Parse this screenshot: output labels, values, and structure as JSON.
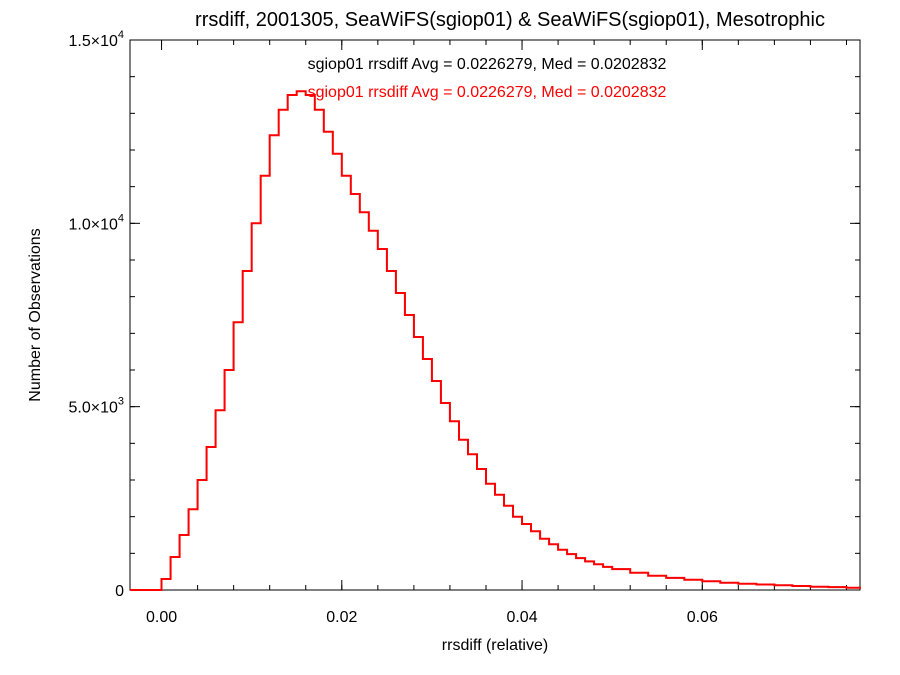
{
  "chart_data": {
    "type": "line",
    "title": "rrsdiff, 2001305, SeaWiFS(sgiop01) & SeaWiFS(sgiop01), Mesotrophic",
    "xlabel": "rrsdiff (relative)",
    "ylabel": "Number of Observations",
    "xlim": [
      -0.0035,
      0.0775
    ],
    "ylim": [
      0,
      15000
    ],
    "x_ticks": [
      {
        "value": 0.0,
        "label": "0.00"
      },
      {
        "value": 0.02,
        "label": "0.02"
      },
      {
        "value": 0.04,
        "label": "0.04"
      },
      {
        "value": 0.06,
        "label": "0.06"
      }
    ],
    "y_ticks": [
      {
        "value": 0,
        "label": "0",
        "exp": ""
      },
      {
        "value": 5000,
        "label": "5.0×10",
        "exp": "3"
      },
      {
        "value": 10000,
        "label": "1.0×10",
        "exp": "4"
      },
      {
        "value": 15000,
        "label": "1.5×10",
        "exp": "4"
      }
    ],
    "x_minor_step": 0.004,
    "y_minor_step": 1000,
    "annotations": [
      {
        "text": "sgiop01 rrsdiff Avg = 0.0226279, Med = 0.0202832",
        "color": "#000000"
      },
      {
        "text": "sgiop01 rrsdiff Avg = 0.0226279, Med = 0.0202832",
        "color": "#ff0000"
      }
    ],
    "grid": false,
    "series": [
      {
        "color": "#000000",
        "x": [
          -0.0035,
          -0.001,
          0.0,
          0.001,
          0.002,
          0.003,
          0.004,
          0.005,
          0.006,
          0.007,
          0.008,
          0.009,
          0.01,
          0.011,
          0.012,
          0.013,
          0.014,
          0.015,
          0.016,
          0.017,
          0.018,
          0.019,
          0.02,
          0.021,
          0.022,
          0.023,
          0.024,
          0.025,
          0.026,
          0.027,
          0.028,
          0.029,
          0.03,
          0.031,
          0.032,
          0.033,
          0.034,
          0.035,
          0.036,
          0.037,
          0.038,
          0.039,
          0.04,
          0.041,
          0.042,
          0.043,
          0.044,
          0.045,
          0.046,
          0.047,
          0.048,
          0.049,
          0.05,
          0.052,
          0.054,
          0.056,
          0.058,
          0.06,
          0.062,
          0.064,
          0.066,
          0.068,
          0.07,
          0.072,
          0.074,
          0.076,
          0.0775
        ],
        "y": [
          0,
          0,
          300,
          900,
          1500,
          2200,
          3000,
          3900,
          4900,
          6000,
          7300,
          8700,
          10000,
          11300,
          12400,
          13100,
          13500,
          13600,
          13500,
          13100,
          12500,
          11900,
          11300,
          10800,
          10300,
          9800,
          9300,
          8700,
          8100,
          7500,
          6900,
          6300,
          5700,
          5100,
          4600,
          4100,
          3700,
          3300,
          2900,
          2600,
          2300,
          2000,
          1800,
          1600,
          1400,
          1250,
          1100,
          980,
          870,
          780,
          700,
          630,
          570,
          470,
          390,
          330,
          280,
          240,
          200,
          170,
          150,
          130,
          110,
          90,
          80,
          60,
          40
        ]
      },
      {
        "color": "#ff0000",
        "x": [
          -0.0035,
          -0.001,
          0.0,
          0.001,
          0.002,
          0.003,
          0.004,
          0.005,
          0.006,
          0.007,
          0.008,
          0.009,
          0.01,
          0.011,
          0.012,
          0.013,
          0.014,
          0.015,
          0.016,
          0.017,
          0.018,
          0.019,
          0.02,
          0.021,
          0.022,
          0.023,
          0.024,
          0.025,
          0.026,
          0.027,
          0.028,
          0.029,
          0.03,
          0.031,
          0.032,
          0.033,
          0.034,
          0.035,
          0.036,
          0.037,
          0.038,
          0.039,
          0.04,
          0.041,
          0.042,
          0.043,
          0.044,
          0.045,
          0.046,
          0.047,
          0.048,
          0.049,
          0.05,
          0.052,
          0.054,
          0.056,
          0.058,
          0.06,
          0.062,
          0.064,
          0.066,
          0.068,
          0.07,
          0.072,
          0.074,
          0.076,
          0.0775
        ],
        "y": [
          0,
          0,
          300,
          900,
          1500,
          2200,
          3000,
          3900,
          4900,
          6000,
          7300,
          8700,
          10000,
          11300,
          12400,
          13100,
          13500,
          13600,
          13500,
          13100,
          12500,
          11900,
          11300,
          10800,
          10300,
          9800,
          9300,
          8700,
          8100,
          7500,
          6900,
          6300,
          5700,
          5100,
          4600,
          4100,
          3700,
          3300,
          2900,
          2600,
          2300,
          2000,
          1800,
          1600,
          1400,
          1250,
          1100,
          980,
          870,
          780,
          700,
          630,
          570,
          470,
          390,
          330,
          280,
          240,
          200,
          170,
          150,
          130,
          110,
          90,
          80,
          60,
          40
        ]
      }
    ]
  }
}
